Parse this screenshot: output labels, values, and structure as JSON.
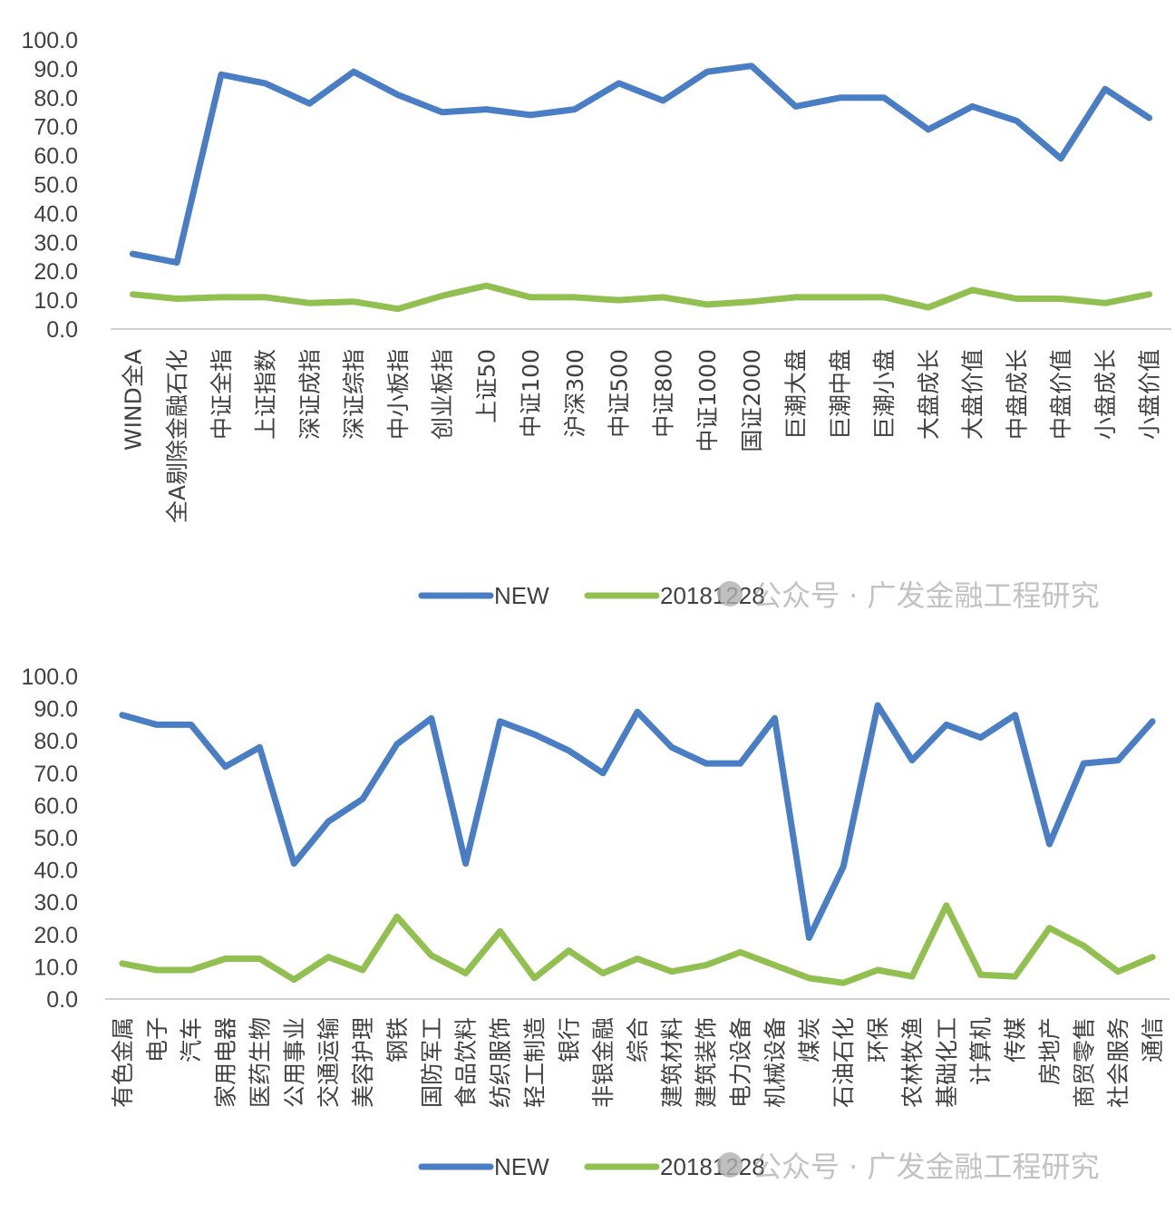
{
  "watermark": "公众号 · 广发金融工程研究",
  "colors": {
    "NEW": "#4a7ec4",
    "20181228": "#92c050",
    "axis": "#d0d0d0",
    "text": "#404040"
  },
  "chart_data": [
    {
      "type": "line",
      "ylim": [
        0,
        100
      ],
      "yticks": [
        "100.0",
        "90.0",
        "80.0",
        "70.0",
        "60.0",
        "50.0",
        "40.0",
        "30.0",
        "20.0",
        "10.0",
        "0.0"
      ],
      "legend_position": "bottom-right",
      "categories": [
        "WIND全A",
        "全A剔除金融石化",
        "中证全指",
        "上证指数",
        "深证成指",
        "深证综指",
        "中小板指",
        "创业板指",
        "上证50",
        "中证100",
        "沪深300",
        "中证500",
        "中证800",
        "中证1000",
        "国证2000",
        "巨潮大盘",
        "巨潮中盘",
        "巨潮小盘",
        "大盘成长",
        "大盘价值",
        "中盘成长",
        "中盘价值",
        "小盘成长",
        "小盘价值"
      ],
      "series": [
        {
          "name": "NEW",
          "values": [
            26,
            23,
            88,
            85,
            78,
            89,
            81,
            75,
            76,
            74,
            76,
            85,
            79,
            89,
            91,
            77,
            80,
            80,
            69,
            77,
            72,
            59,
            83,
            73
          ]
        },
        {
          "name": "20181228",
          "values": [
            12,
            10.5,
            11,
            11,
            9,
            9.5,
            7,
            11.5,
            15,
            11,
            11,
            10,
            11,
            8.5,
            9.5,
            11,
            11,
            11,
            7.5,
            13.5,
            10.5,
            10.5,
            9,
            12
          ]
        }
      ]
    },
    {
      "type": "line",
      "ylim": [
        0,
        100
      ],
      "yticks": [
        "100.0",
        "90.0",
        "80.0",
        "70.0",
        "60.0",
        "50.0",
        "40.0",
        "30.0",
        "20.0",
        "10.0",
        "0.0"
      ],
      "legend_position": "bottom-right",
      "categories": [
        "有色金属",
        "电子",
        "汽车",
        "家用电器",
        "医药生物",
        "公用事业",
        "交通运输",
        "美容护理",
        "钢铁",
        "国防军工",
        "食品饮料",
        "纺织服饰",
        "轻工制造",
        "银行",
        "非银金融",
        "综合",
        "建筑材料",
        "建筑装饰",
        "电力设备",
        "机械设备",
        "煤炭",
        "石油石化",
        "环保",
        "农林牧渔",
        "基础化工",
        "计算机",
        "传媒",
        "房地产",
        "商贸零售",
        "社会服务",
        "通信"
      ],
      "series": [
        {
          "name": "NEW",
          "values": [
            88,
            85,
            85,
            72,
            78,
            42,
            55,
            62,
            79,
            87,
            42,
            86,
            82,
            77,
            70,
            89,
            78,
            73,
            73,
            87,
            19,
            41,
            91,
            74,
            85,
            81,
            88,
            48,
            73,
            74,
            86
          ]
        },
        {
          "name": "20181228",
          "values": [
            11,
            9,
            9,
            12.5,
            12.5,
            6,
            13,
            9,
            25.5,
            13.5,
            8,
            21,
            6.5,
            15,
            8,
            12.5,
            8.5,
            10.5,
            14.5,
            10.5,
            6.5,
            5,
            9,
            7,
            29,
            7.5,
            7,
            22,
            16.5,
            8.5,
            13
          ]
        }
      ]
    }
  ]
}
